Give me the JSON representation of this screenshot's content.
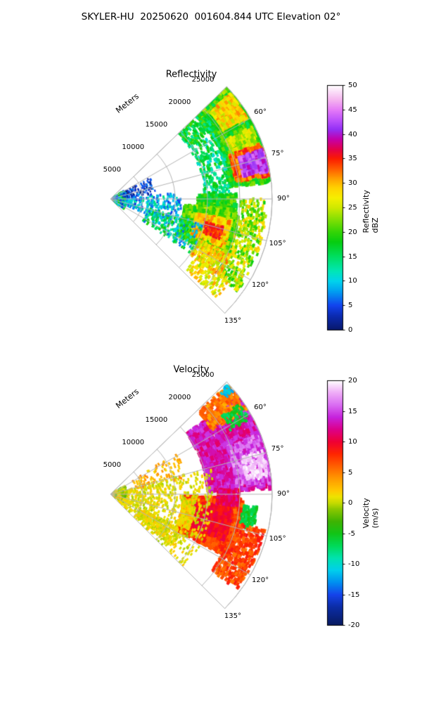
{
  "header": {
    "title": "SKYLER-HU  20250620  001604.844 UTC Elevation 02°"
  },
  "layout_colors": {
    "background": "#ffffff",
    "grid": "#b3b3b3",
    "text": "#000000",
    "colorbar_border": "#000000"
  },
  "chart_data": [
    {
      "type": "radar_ppi_sector",
      "title": "Reflectivity",
      "seed": 7,
      "sector_deg": [
        46,
        135
      ],
      "azimuth_ticks_deg": [
        60,
        75,
        90,
        105,
        120,
        135
      ],
      "azimuth_tick_suffix": "°",
      "radial_axis": {
        "label": "Meters",
        "ticks": [
          5000,
          10000,
          15000,
          20000,
          25000
        ],
        "max": 25000
      },
      "colorbar": {
        "label": "Reflectivity dBZ",
        "min": 0,
        "max": 50,
        "ticks": [
          0,
          5,
          10,
          15,
          20,
          25,
          30,
          35,
          40,
          45,
          50
        ],
        "stops": [
          [
            0,
            "#08186a"
          ],
          [
            3,
            "#0b2cb4"
          ],
          [
            5,
            "#1243ee"
          ],
          [
            8,
            "#00a2f0"
          ],
          [
            10,
            "#00d3ec"
          ],
          [
            12,
            "#00e6b6"
          ],
          [
            15,
            "#00df60"
          ],
          [
            18,
            "#06cd10"
          ],
          [
            20,
            "#33d406"
          ],
          [
            23,
            "#8fe103"
          ],
          [
            25,
            "#cfe900"
          ],
          [
            27,
            "#f6ef00"
          ],
          [
            29,
            "#ffd300"
          ],
          [
            31,
            "#ff9e00"
          ],
          [
            33,
            "#ff5a00"
          ],
          [
            35,
            "#fb1c00"
          ],
          [
            37,
            "#e3004c"
          ],
          [
            39,
            "#c400ab"
          ],
          [
            41,
            "#9330f5"
          ],
          [
            43,
            "#bf54fb"
          ],
          [
            45,
            "#e57bf7"
          ],
          [
            47,
            "#f5b3ef"
          ],
          [
            50,
            "#ffffff"
          ]
        ]
      },
      "echoes": [
        {
          "az": [
            46,
            62
          ],
          "r": [
            18500,
            25000
          ],
          "val": [
            20,
            5
          ],
          "count": 950,
          "size": 4
        },
        {
          "az": [
            49,
            60
          ],
          "r": [
            20500,
            24600
          ],
          "val": [
            28,
            4
          ],
          "count": 380,
          "size": 4
        },
        {
          "az": [
            60,
            84
          ],
          "r": [
            18500,
            25000
          ],
          "val": [
            19,
            4
          ],
          "count": 1000,
          "size": 4
        },
        {
          "az": [
            63,
            74
          ],
          "r": [
            20000,
            24500
          ],
          "val": [
            25,
            4
          ],
          "count": 320,
          "size": 3.5
        },
        {
          "az": [
            70,
            82
          ],
          "r": [
            19500,
            25000
          ],
          "val": [
            33,
            3
          ],
          "count": 400,
          "size": 4
        },
        {
          "az": [
            72,
            80
          ],
          "r": [
            20800,
            24700
          ],
          "val": [
            42,
            3
          ],
          "count": 300,
          "size": 4
        },
        {
          "az": [
            55,
            88
          ],
          "r": [
            14500,
            18800
          ],
          "val": [
            15,
            5
          ],
          "count": 260,
          "size": 3
        },
        {
          "az": [
            88,
            100
          ],
          "r": [
            13500,
            19500
          ],
          "val": [
            19,
            4
          ],
          "count": 420,
          "size": 4
        },
        {
          "az": [
            95,
            118
          ],
          "r": [
            11500,
            20000
          ],
          "val": [
            21,
            4
          ],
          "count": 950,
          "size": 4
        },
        {
          "az": [
            100,
            113
          ],
          "r": [
            13500,
            19000
          ],
          "val": [
            29,
            4
          ],
          "count": 450,
          "size": 4
        },
        {
          "az": [
            104,
            110
          ],
          "r": [
            15000,
            18000
          ],
          "val": [
            35,
            2
          ],
          "count": 90,
          "size": 3
        },
        {
          "az": [
            90,
            126
          ],
          "r": [
            20000,
            24300
          ],
          "val": [
            24,
            6
          ],
          "count": 430,
          "size": 3
        },
        {
          "az": [
            115,
            125
          ],
          "r": [
            15000,
            20500
          ],
          "val": [
            28,
            5
          ],
          "count": 230,
          "size": 3
        },
        {
          "az": [
            124,
            133
          ],
          "r": [
            16000,
            22500
          ],
          "val": [
            27,
            4
          ],
          "count": 120,
          "size": 3
        },
        {
          "az": [
            60,
            125
          ],
          "r": [
            300,
            2600
          ],
          "val": [
            12,
            9
          ],
          "count": 430,
          "size": 2.5
        },
        {
          "az": [
            85,
            112
          ],
          "r": [
            2600,
            11000
          ],
          "val": [
            9,
            5
          ],
          "count": 240,
          "size": 2.5
        },
        {
          "az": [
            62,
            85
          ],
          "r": [
            2000,
            7000
          ],
          "val": [
            4,
            4
          ],
          "count": 120,
          "size": 2
        },
        {
          "az": [
            104,
            124
          ],
          "r": [
            6000,
            15000
          ],
          "val": [
            13,
            7
          ],
          "count": 260,
          "size": 2.5
        },
        {
          "az": [
            46,
            56
          ],
          "r": [
            14500,
            19500
          ],
          "val": [
            17,
            5
          ],
          "count": 160,
          "size": 3
        }
      ]
    },
    {
      "type": "radar_ppi_sector",
      "title": "Velocity",
      "seed": 11,
      "sector_deg": [
        46,
        135
      ],
      "azimuth_ticks_deg": [
        60,
        75,
        90,
        105,
        120,
        135
      ],
      "azimuth_tick_suffix": "°",
      "radial_axis": {
        "label": "Meters",
        "ticks": [
          5000,
          10000,
          15000,
          20000,
          25000
        ],
        "max": 25000
      },
      "colorbar": {
        "label": "Velocity (m/s)",
        "min": -20,
        "max": 20,
        "ticks": [
          -20,
          -15,
          -10,
          -5,
          0,
          5,
          10,
          15,
          20
        ],
        "stops": [
          [
            -20,
            "#081a60"
          ],
          [
            -17,
            "#0b2da6"
          ],
          [
            -15,
            "#1543ea"
          ],
          [
            -13,
            "#008ff0"
          ],
          [
            -11,
            "#00cfec"
          ],
          [
            -9,
            "#00e3ae"
          ],
          [
            -7,
            "#00da58"
          ],
          [
            -5,
            "#12c517"
          ],
          [
            -3,
            "#3fb303"
          ],
          [
            -1,
            "#8cc800"
          ],
          [
            0,
            "#c6da00"
          ],
          [
            1,
            "#eee300"
          ],
          [
            2,
            "#ffc900"
          ],
          [
            4,
            "#ff9900"
          ],
          [
            6,
            "#ff6000"
          ],
          [
            8,
            "#ff2600"
          ],
          [
            10,
            "#ef0034"
          ],
          [
            12,
            "#dd0089"
          ],
          [
            14,
            "#c622dc"
          ],
          [
            16,
            "#d96cf2"
          ],
          [
            18,
            "#efabf7"
          ],
          [
            20,
            "#ffffff"
          ]
        ]
      },
      "echoes": [
        {
          "az": [
            52,
            88
          ],
          "r": [
            15000,
            25000
          ],
          "val": [
            13,
            2
          ],
          "count": 1700,
          "size": 4.5
        },
        {
          "az": [
            68,
            86
          ],
          "r": [
            19500,
            25000
          ],
          "val": [
            15.5,
            2.5
          ],
          "count": 650,
          "size": 4
        },
        {
          "az": [
            74,
            84
          ],
          "r": [
            21000,
            24500
          ],
          "val": [
            19,
            1
          ],
          "count": 160,
          "size": 3
        },
        {
          "az": [
            47,
            58
          ],
          "r": [
            18500,
            24800
          ],
          "val": [
            5,
            2
          ],
          "count": 300,
          "size": 3.5
        },
        {
          "az": [
            55,
            62
          ],
          "r": [
            21000,
            24500
          ],
          "val": [
            -6,
            2
          ],
          "count": 80,
          "size": 3
        },
        {
          "az": [
            47,
            50
          ],
          "r": [
            23000,
            24800
          ],
          "val": [
            -11,
            1.5
          ],
          "count": 25,
          "size": 3
        },
        {
          "az": [
            92,
            118
          ],
          "r": [
            11500,
            20500
          ],
          "val": [
            7,
            2
          ],
          "count": 1500,
          "size": 4.5
        },
        {
          "az": [
            96,
            112
          ],
          "r": [
            13000,
            19000
          ],
          "val": [
            9.5,
            1.5
          ],
          "count": 520,
          "size": 4
        },
        {
          "az": [
            94,
            114
          ],
          "r": [
            11200,
            13200
          ],
          "val": [
            2,
            1.5
          ],
          "count": 260,
          "size": 3
        },
        {
          "az": [
            95,
            104
          ],
          "r": [
            20500,
            22800
          ],
          "val": [
            -6,
            1.5
          ],
          "count": 130,
          "size": 3
        },
        {
          "az": [
            103,
            127
          ],
          "r": [
            19500,
            24500
          ],
          "val": [
            7,
            2
          ],
          "count": 380,
          "size": 3.5
        },
        {
          "az": [
            88,
            95
          ],
          "r": [
            16500,
            20000
          ],
          "val": [
            11,
            2
          ],
          "count": 150,
          "size": 3.5
        },
        {
          "az": [
            75,
            135
          ],
          "r": [
            1500,
            16000
          ],
          "val": [
            0.8,
            1.4
          ],
          "count": 750,
          "size": 2.5
        },
        {
          "az": [
            116,
            130
          ],
          "r": [
            5000,
            12500
          ],
          "val": [
            1,
            1.6
          ],
          "count": 320,
          "size": 2.5
        },
        {
          "az": [
            58,
            78
          ],
          "r": [
            4000,
            12000
          ],
          "val": [
            3,
            2
          ],
          "count": 90,
          "size": 2.5
        },
        {
          "az": [
            60,
            120
          ],
          "r": [
            300,
            2600
          ],
          "val": [
            0,
            3
          ],
          "count": 300,
          "size": 2.5
        }
      ]
    }
  ]
}
